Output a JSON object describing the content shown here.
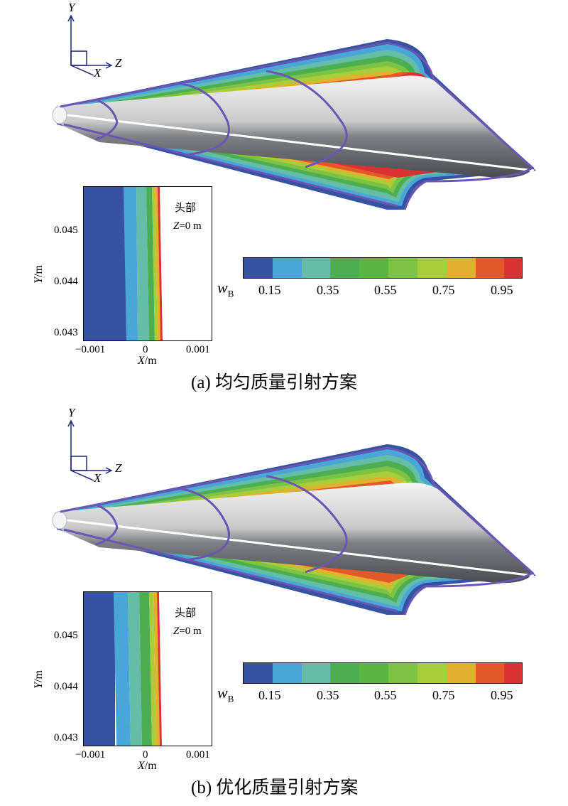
{
  "colors": {
    "levels": [
      "#3752a2",
      "#4aa6d8",
      "#64bda6",
      "#4cae51",
      "#5ab63e",
      "#7cc243",
      "#a7cd3a",
      "#e1b02c",
      "#e3592b",
      "#d93230"
    ],
    "body_light": "#eeeeee",
    "body_dark": "#4a4c52",
    "contour_line": "#6a56b5"
  },
  "colorbar": {
    "var_main": "w",
    "var_sub": "B",
    "ticks": [
      "0.15",
      "0.35",
      "0.55",
      "0.75",
      "0.95"
    ]
  },
  "axes_triad": {
    "y": "Y",
    "x": "X",
    "z": "Z"
  },
  "inset": {
    "y_ticks": [
      "0.045",
      "0.044",
      "0.043"
    ],
    "x_ticks": [
      "−0.001",
      "0",
      "0.001"
    ],
    "x_label_var": "X",
    "x_label_unit": "/m",
    "y_label_var": "Y",
    "y_label_unit": "/m",
    "note_line1": "头部",
    "note_line2_var": "Z",
    "note_line2_rest": "=0 m"
  },
  "panels": [
    {
      "id": "a",
      "caption": "(a) 均匀质量引射方案"
    },
    {
      "id": "b",
      "caption": "(b) 优化质量引射方案"
    }
  ]
}
